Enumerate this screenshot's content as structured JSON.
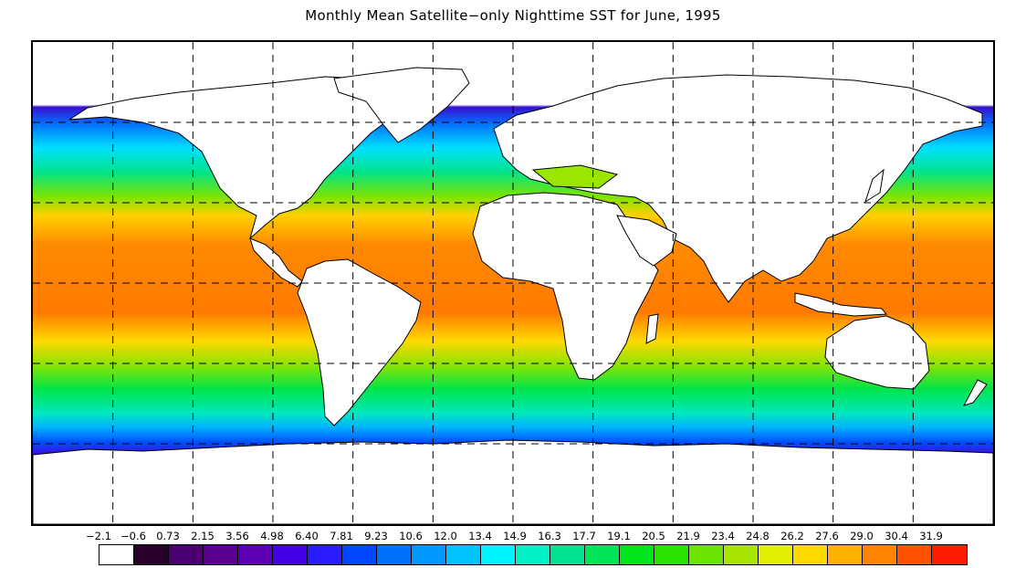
{
  "title": "Monthly Mean Satellite−only Nighttime SST for June, 1995",
  "map": {
    "projection": "equirectangular",
    "grid_style": "dashed",
    "grid_longitudes_deg": [
      -150,
      -120,
      -90,
      -60,
      -30,
      0,
      30,
      60,
      90,
      120,
      150
    ],
    "grid_latitudes_deg": [
      60,
      30,
      0,
      -30,
      -60
    ],
    "land_color": "#ffffff",
    "outline_color": "#000000"
  },
  "legend": {
    "labels": [
      "−2.1",
      "−0.6",
      "0.73",
      "2.15",
      "3.56",
      "4.98",
      "6.40",
      "7.81",
      "9.23",
      "10.6",
      "12.0",
      "13.4",
      "14.9",
      "16.3",
      "17.7",
      "19.1",
      "20.5",
      "21.9",
      "23.4",
      "24.8",
      "26.2",
      "27.6",
      "29.0",
      "30.4",
      "31.9"
    ],
    "colors": [
      "#ffffff",
      "#2a002a",
      "#4a0070",
      "#5a0090",
      "#5d00b5",
      "#4400e6",
      "#2a1cff",
      "#0045ff",
      "#0070ff",
      "#0098ff",
      "#00c4ff",
      "#00f4ff",
      "#00f0c8",
      "#00e492",
      "#00e45a",
      "#00e41e",
      "#2ae400",
      "#6ae400",
      "#a8e400",
      "#e0f000",
      "#ffd800",
      "#ffb000",
      "#ff8400",
      "#ff5200",
      "#ff1c00"
    ]
  }
}
